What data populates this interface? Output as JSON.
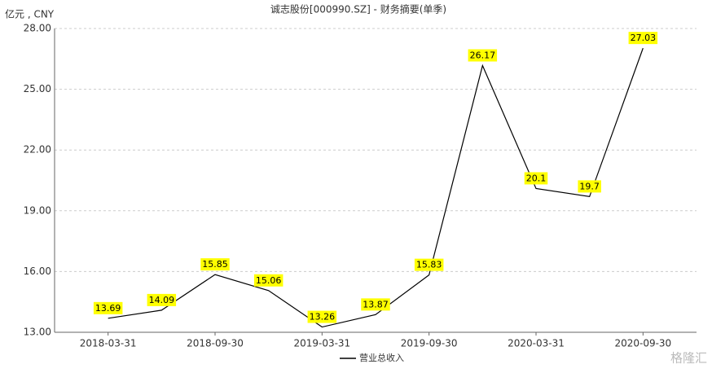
{
  "chart_data": {
    "type": "line",
    "title": "诚志股份[000990.SZ] - 财务摘要(单季)",
    "y_axis_label": "亿元 , CNY",
    "categories": [
      "2018-03-31",
      null,
      "2018-09-30",
      null,
      "2019-03-31",
      null,
      "2019-09-30",
      null,
      "2020-03-31",
      null,
      "2020-09-30"
    ],
    "series": [
      {
        "name": "营业总收入",
        "color": "#000000",
        "values": [
          13.69,
          14.09,
          15.85,
          15.06,
          13.26,
          13.87,
          15.83,
          26.17,
          20.1,
          19.7,
          27.03
        ]
      }
    ],
    "ylim": [
      13,
      28
    ],
    "yticks": [
      {
        "value": 13,
        "label": "13.00"
      },
      {
        "value": 16,
        "label": "16.00"
      },
      {
        "value": 19,
        "label": "19.00"
      },
      {
        "value": 22,
        "label": "22.00"
      },
      {
        "value": 25,
        "label": "25.00"
      },
      {
        "value": 28,
        "label": "28.00"
      }
    ],
    "grid": true,
    "label_color": "#ffff00",
    "watermark": "格隆汇"
  }
}
